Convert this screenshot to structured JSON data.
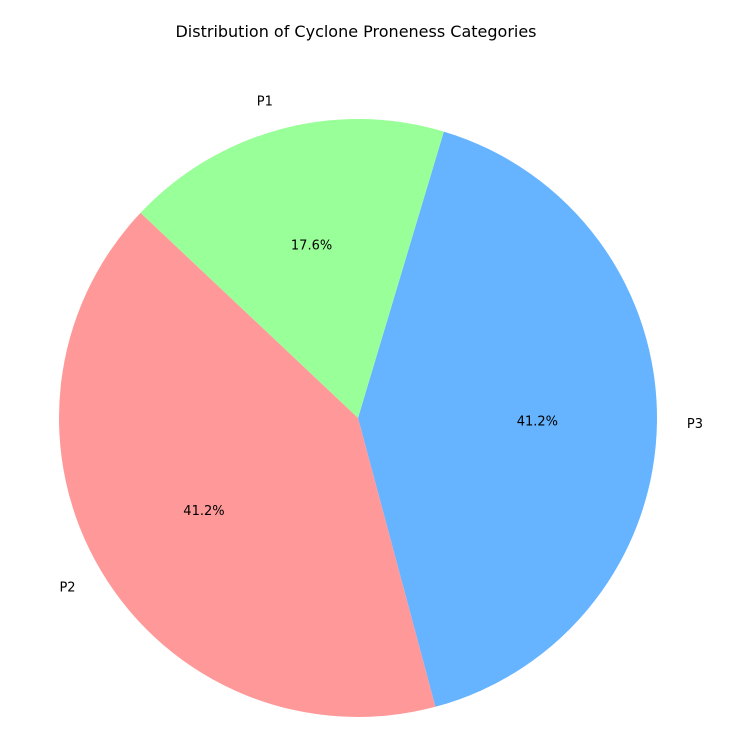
{
  "chart_data": {
    "type": "pie",
    "title": "Distribution of Cyclone Proneness Categories",
    "categories": [
      "P3",
      "P1",
      "P2"
    ],
    "values": [
      41.2,
      17.6,
      41.2
    ],
    "labels": [
      "41.2%",
      "17.6%",
      "41.2%"
    ],
    "colors": [
      "#66b3ff",
      "#99ff99",
      "#ff9999"
    ],
    "legend": "none"
  }
}
